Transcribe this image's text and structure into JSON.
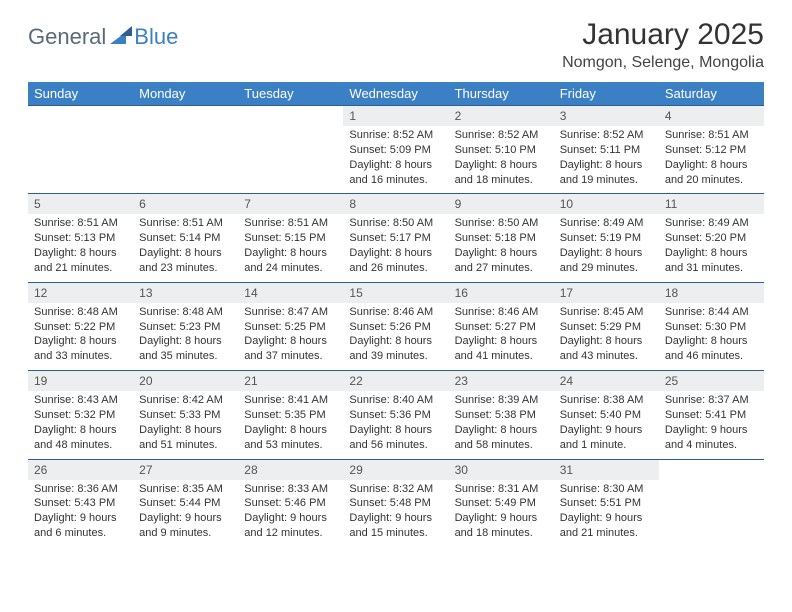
{
  "brand": {
    "part1": "General",
    "part2": "Blue"
  },
  "title": "January 2025",
  "location": "Nomgon, Selenge, Mongolia",
  "colors": {
    "header_bg": "#3b7fc4",
    "header_text": "#ffffff",
    "daynum_bg": "#eceeef",
    "row_divider": "#2e5d8f",
    "body_text": "#333333",
    "brand_gray": "#5a6a78",
    "brand_blue": "#3b7fc4"
  },
  "weekdays": [
    "Sunday",
    "Monday",
    "Tuesday",
    "Wednesday",
    "Thursday",
    "Friday",
    "Saturday"
  ],
  "weeks": [
    [
      null,
      null,
      null,
      {
        "n": "1",
        "sunrise": "8:52 AM",
        "sunset": "5:09 PM",
        "daylight": "8 hours and 16 minutes."
      },
      {
        "n": "2",
        "sunrise": "8:52 AM",
        "sunset": "5:10 PM",
        "daylight": "8 hours and 18 minutes."
      },
      {
        "n": "3",
        "sunrise": "8:52 AM",
        "sunset": "5:11 PM",
        "daylight": "8 hours and 19 minutes."
      },
      {
        "n": "4",
        "sunrise": "8:51 AM",
        "sunset": "5:12 PM",
        "daylight": "8 hours and 20 minutes."
      }
    ],
    [
      {
        "n": "5",
        "sunrise": "8:51 AM",
        "sunset": "5:13 PM",
        "daylight": "8 hours and 21 minutes."
      },
      {
        "n": "6",
        "sunrise": "8:51 AM",
        "sunset": "5:14 PM",
        "daylight": "8 hours and 23 minutes."
      },
      {
        "n": "7",
        "sunrise": "8:51 AM",
        "sunset": "5:15 PM",
        "daylight": "8 hours and 24 minutes."
      },
      {
        "n": "8",
        "sunrise": "8:50 AM",
        "sunset": "5:17 PM",
        "daylight": "8 hours and 26 minutes."
      },
      {
        "n": "9",
        "sunrise": "8:50 AM",
        "sunset": "5:18 PM",
        "daylight": "8 hours and 27 minutes."
      },
      {
        "n": "10",
        "sunrise": "8:49 AM",
        "sunset": "5:19 PM",
        "daylight": "8 hours and 29 minutes."
      },
      {
        "n": "11",
        "sunrise": "8:49 AM",
        "sunset": "5:20 PM",
        "daylight": "8 hours and 31 minutes."
      }
    ],
    [
      {
        "n": "12",
        "sunrise": "8:48 AM",
        "sunset": "5:22 PM",
        "daylight": "8 hours and 33 minutes."
      },
      {
        "n": "13",
        "sunrise": "8:48 AM",
        "sunset": "5:23 PM",
        "daylight": "8 hours and 35 minutes."
      },
      {
        "n": "14",
        "sunrise": "8:47 AM",
        "sunset": "5:25 PM",
        "daylight": "8 hours and 37 minutes."
      },
      {
        "n": "15",
        "sunrise": "8:46 AM",
        "sunset": "5:26 PM",
        "daylight": "8 hours and 39 minutes."
      },
      {
        "n": "16",
        "sunrise": "8:46 AM",
        "sunset": "5:27 PM",
        "daylight": "8 hours and 41 minutes."
      },
      {
        "n": "17",
        "sunrise": "8:45 AM",
        "sunset": "5:29 PM",
        "daylight": "8 hours and 43 minutes."
      },
      {
        "n": "18",
        "sunrise": "8:44 AM",
        "sunset": "5:30 PM",
        "daylight": "8 hours and 46 minutes."
      }
    ],
    [
      {
        "n": "19",
        "sunrise": "8:43 AM",
        "sunset": "5:32 PM",
        "daylight": "8 hours and 48 minutes."
      },
      {
        "n": "20",
        "sunrise": "8:42 AM",
        "sunset": "5:33 PM",
        "daylight": "8 hours and 51 minutes."
      },
      {
        "n": "21",
        "sunrise": "8:41 AM",
        "sunset": "5:35 PM",
        "daylight": "8 hours and 53 minutes."
      },
      {
        "n": "22",
        "sunrise": "8:40 AM",
        "sunset": "5:36 PM",
        "daylight": "8 hours and 56 minutes."
      },
      {
        "n": "23",
        "sunrise": "8:39 AM",
        "sunset": "5:38 PM",
        "daylight": "8 hours and 58 minutes."
      },
      {
        "n": "24",
        "sunrise": "8:38 AM",
        "sunset": "5:40 PM",
        "daylight": "9 hours and 1 minute."
      },
      {
        "n": "25",
        "sunrise": "8:37 AM",
        "sunset": "5:41 PM",
        "daylight": "9 hours and 4 minutes."
      }
    ],
    [
      {
        "n": "26",
        "sunrise": "8:36 AM",
        "sunset": "5:43 PM",
        "daylight": "9 hours and 6 minutes."
      },
      {
        "n": "27",
        "sunrise": "8:35 AM",
        "sunset": "5:44 PM",
        "daylight": "9 hours and 9 minutes."
      },
      {
        "n": "28",
        "sunrise": "8:33 AM",
        "sunset": "5:46 PM",
        "daylight": "9 hours and 12 minutes."
      },
      {
        "n": "29",
        "sunrise": "8:32 AM",
        "sunset": "5:48 PM",
        "daylight": "9 hours and 15 minutes."
      },
      {
        "n": "30",
        "sunrise": "8:31 AM",
        "sunset": "5:49 PM",
        "daylight": "9 hours and 18 minutes."
      },
      {
        "n": "31",
        "sunrise": "8:30 AM",
        "sunset": "5:51 PM",
        "daylight": "9 hours and 21 minutes."
      },
      null
    ]
  ]
}
